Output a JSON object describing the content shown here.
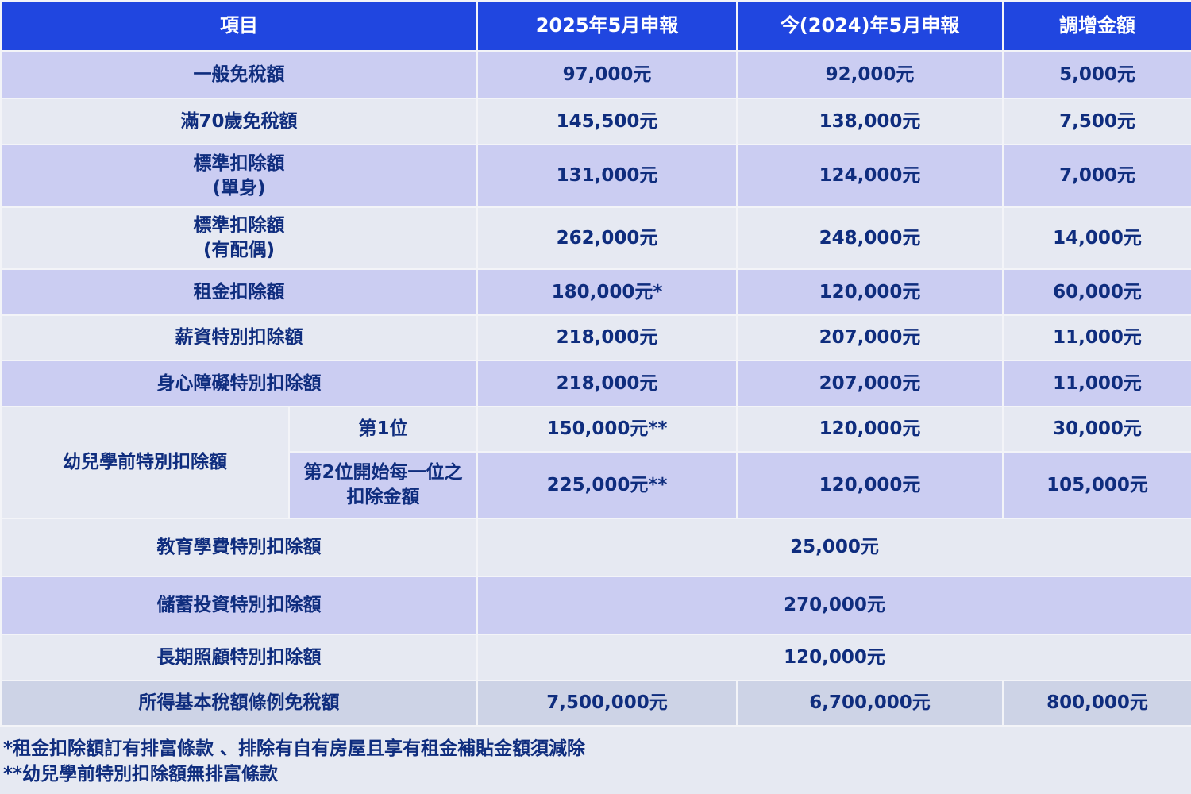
{
  "header": {
    "item": "項目",
    "col_2025": "2025年5月申報",
    "col_2024": "今(2024)年5月申報",
    "col_increase": "調增金額"
  },
  "rows": [
    {
      "item": "一般免稅額",
      "v2025": "97,000元",
      "v2024": "92,000元",
      "inc": "5,000元"
    },
    {
      "item": "滿70歲免稅額",
      "v2025": "145,500元",
      "v2024": "138,000元",
      "inc": "7,500元"
    },
    {
      "item": "標準扣除額",
      "item2": "(單身)",
      "v2025": "131,000元",
      "v2024": "124,000元",
      "inc": "7,000元"
    },
    {
      "item": "標準扣除額",
      "item2": "(有配偶)",
      "v2025": "262,000元",
      "v2024": "248,000元",
      "inc": "14,000元"
    },
    {
      "item": "租金扣除額",
      "v2025": "180,000元*",
      "v2024": "120,000元",
      "inc": "60,000元"
    },
    {
      "item": "薪資特別扣除額",
      "v2025": "218,000元",
      "v2024": "207,000元",
      "inc": "11,000元"
    },
    {
      "item": "身心障礙特別扣除額",
      "v2025": "218,000元",
      "v2024": "207,000元",
      "inc": "11,000元"
    }
  ],
  "preschool": {
    "item": "幼兒學前特別扣除額",
    "first": {
      "label": "第1位",
      "v2025": "150,000元**",
      "v2024": "120,000元",
      "inc": "30,000元"
    },
    "second": {
      "label": "第2位開始每一位之",
      "label2": "扣除金額",
      "v2025": "225,000元**",
      "v2024": "120,000元",
      "inc": "105,000元"
    }
  },
  "merged_rows": [
    {
      "item": "教育學費特別扣除額",
      "value": "25,000元"
    },
    {
      "item": "儲蓄投資特別扣除額",
      "value": "270,000元"
    },
    {
      "item": "長期照顧特別扣除額",
      "value": "120,000元"
    }
  ],
  "basic_tax": {
    "item": "所得基本稅額條例免稅額",
    "v2025": "7,500,000元",
    "v2024": "6,700,000元",
    "inc": "800,000元"
  },
  "footnotes": [
    "*租金扣除額訂有排富條款 、排除有自有房屋且享有租金補貼金額須減除",
    "**幼兒學前特別扣除額無排富條款"
  ],
  "colors": {
    "header": "#2046e0",
    "row_blue": "#cbcdf2",
    "row_light": "#e6e9f2",
    "row_gray": "#cdd3e6",
    "text": "#0f2d7e"
  }
}
